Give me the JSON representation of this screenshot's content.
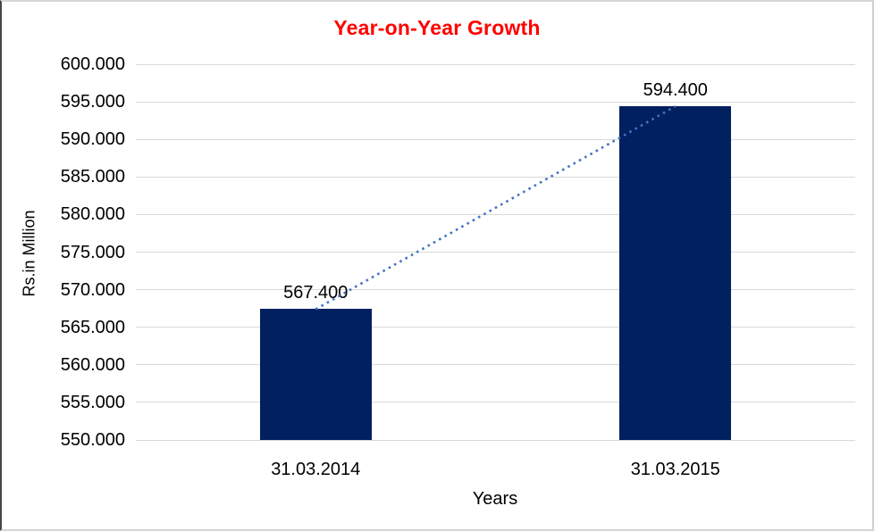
{
  "chart_data": {
    "type": "bar",
    "title": "Year-on-Year Growth",
    "title_color": "#FF0000",
    "categories": [
      "31.03.2014",
      "31.03.2015"
    ],
    "values": [
      567.4,
      594.4
    ],
    "data_labels": [
      "567.400",
      "594.400"
    ],
    "xlabel": "Years",
    "ylabel": "Rs.in Million",
    "ylim": [
      550,
      600
    ],
    "ytick_interval": 5,
    "ytick_labels": [
      "600.000",
      "595.000",
      "590.000",
      "585.000",
      "580.000",
      "575.000",
      "570.000",
      "565.000",
      "560.000",
      "555.000",
      "550.000"
    ],
    "grid": true,
    "legend": "none",
    "bar_color": "#002060",
    "gridline_color": "#d9d9d9",
    "trendline": {
      "style": "dotted",
      "color": "#4472C4",
      "connects": [
        567.4,
        594.4
      ]
    }
  }
}
